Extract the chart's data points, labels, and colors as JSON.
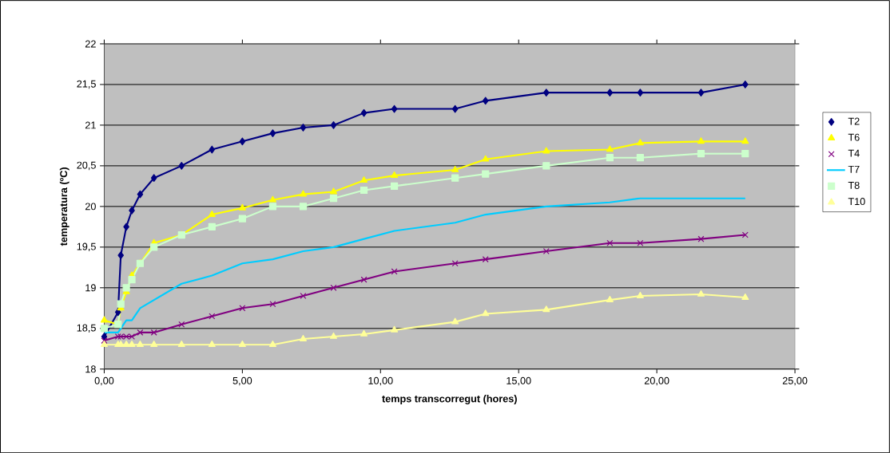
{
  "chart_data": {
    "type": "line",
    "xlabel": "temps transcorregut (hores)",
    "ylabel": "temperatura (ºC)",
    "x": [
      0,
      0.5,
      0.6,
      0.8,
      1.0,
      1.3,
      1.8,
      2.8,
      3.9,
      5.0,
      6.1,
      7.2,
      8.3,
      9.4,
      10.5,
      12.7,
      13.8,
      16.0,
      18.3,
      19.4,
      21.6,
      23.2
    ],
    "series": [
      {
        "name": "T2",
        "color": "#000080",
        "marker": "diamond",
        "values": [
          18.4,
          18.7,
          19.4,
          19.75,
          19.95,
          20.15,
          20.35,
          20.5,
          20.7,
          20.8,
          20.9,
          20.97,
          21.0,
          21.15,
          21.2,
          21.2,
          21.3,
          21.4,
          21.4,
          21.4,
          21.4,
          21.5
        ]
      },
      {
        "name": "T6",
        "color": "#ffff00",
        "marker": "triangle",
        "values": [
          18.6,
          18.55,
          18.75,
          18.95,
          19.15,
          19.3,
          19.55,
          19.65,
          19.9,
          19.98,
          20.08,
          20.15,
          20.18,
          20.32,
          20.38,
          20.45,
          20.58,
          20.68,
          20.7,
          20.78,
          20.8,
          20.8
        ]
      },
      {
        "name": "T4",
        "color": "#800080",
        "marker": "cross",
        "values": [
          18.35,
          18.4,
          18.4,
          18.4,
          18.4,
          18.45,
          18.45,
          18.55,
          18.65,
          18.75,
          18.8,
          18.9,
          19.0,
          19.1,
          19.2,
          19.3,
          19.35,
          19.45,
          19.55,
          19.55,
          19.6,
          19.65
        ]
      },
      {
        "name": "T7",
        "color": "#00ccff",
        "values": [
          18.45,
          18.45,
          18.5,
          18.6,
          18.6,
          18.75,
          18.85,
          19.05,
          19.15,
          19.3,
          19.35,
          19.45,
          19.5,
          19.6,
          19.7,
          19.8,
          19.9,
          20.0,
          20.05,
          20.1,
          20.1,
          20.1
        ]
      },
      {
        "name": "T8",
        "color": "#ccffcc",
        "marker": "square",
        "values": [
          18.5,
          18.55,
          18.8,
          19.0,
          19.1,
          19.3,
          19.5,
          19.65,
          19.75,
          19.85,
          20.0,
          20.0,
          20.1,
          20.2,
          20.25,
          20.35,
          20.4,
          20.5,
          20.6,
          20.6,
          20.65,
          20.65
        ]
      },
      {
        "name": "T10",
        "color": "#ffff99",
        "marker": "triangle",
        "values": [
          18.3,
          18.3,
          18.3,
          18.3,
          18.3,
          18.3,
          18.3,
          18.3,
          18.3,
          18.3,
          18.3,
          18.37,
          18.4,
          18.43,
          18.48,
          18.58,
          18.68,
          18.73,
          18.85,
          18.9,
          18.92,
          18.88
        ]
      }
    ],
    "xlim": [
      0,
      25
    ],
    "xticks": [
      {
        "value": 0,
        "label": "0,00"
      },
      {
        "value": 5,
        "label": "5,00"
      },
      {
        "value": 10,
        "label": "10,00"
      },
      {
        "value": 15,
        "label": "15,00"
      },
      {
        "value": 20,
        "label": "20,00"
      },
      {
        "value": 25,
        "label": "25,00"
      }
    ],
    "ylim": [
      18,
      22
    ],
    "yticks": [
      18,
      {
        "value": 18.5,
        "label": "18,5"
      },
      19,
      {
        "value": 19.5,
        "label": "19,5"
      },
      20,
      {
        "value": 20.5,
        "label": "20,5"
      },
      21,
      {
        "value": 21.5,
        "label": "21,5"
      },
      22
    ],
    "grid": "y",
    "legend": "right",
    "line_style": "solid"
  }
}
